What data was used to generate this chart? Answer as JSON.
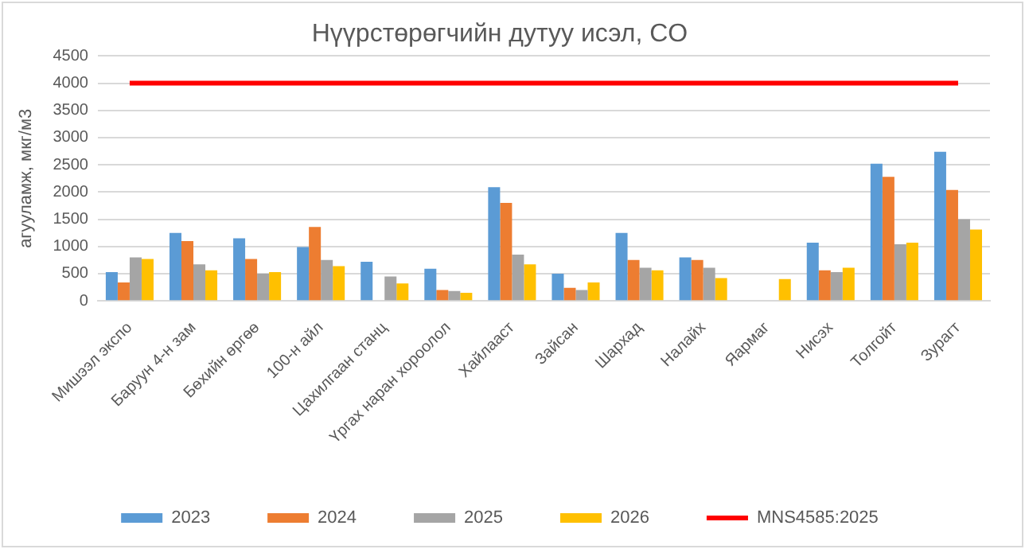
{
  "chart_data": {
    "type": "bar",
    "title": "Нүүрстөрөгчийн дутуу исэл, CO",
    "ylabel": "агууламж, мкг/м3",
    "categories": [
      "Мишээл экспо",
      "Баруун 4-н зам",
      "Бөхийн өргөө",
      "100-н айл",
      "Цахилгаан станц",
      "Үргах наран хороолол",
      "Хайлааст",
      "Зайсан",
      "Шархад",
      "Налайх",
      "Яармаг",
      "Нисэх",
      "Толгойт",
      "Зурагт"
    ],
    "series": [
      {
        "name": "2023",
        "color": "#5b9bd5",
        "values": [
          530,
          1250,
          1150,
          990,
          720,
          590,
          2090,
          500,
          1250,
          800,
          null,
          1070,
          2520,
          2740
        ]
      },
      {
        "name": "2024",
        "color": "#ed7d31",
        "values": [
          340,
          1100,
          770,
          1360,
          null,
          200,
          1800,
          240,
          750,
          750,
          null,
          560,
          2280,
          2040
        ]
      },
      {
        "name": "2025",
        "color": "#a5a5a5",
        "values": [
          800,
          670,
          500,
          750,
          450,
          180,
          850,
          200,
          610,
          610,
          null,
          530,
          1040,
          1500
        ]
      },
      {
        "name": "2026",
        "color": "#ffc000",
        "values": [
          770,
          560,
          530,
          640,
          320,
          150,
          670,
          340,
          560,
          420,
          400,
          610,
          1070,
          1310
        ]
      },
      {
        "name": "MNS4585:2025",
        "color": "#ff0000",
        "type": "line",
        "values": [
          4000,
          4000,
          4000,
          4000,
          4000,
          4000,
          4000,
          4000,
          4000,
          4000,
          4000,
          4000,
          4000,
          4000
        ]
      }
    ],
    "ylim": [
      0,
      4500
    ],
    "yticks": [
      0,
      500,
      1000,
      1500,
      2000,
      2500,
      3000,
      3500,
      4000,
      4500
    ],
    "grid": "y",
    "legend": "bottom",
    "marker": "none"
  }
}
